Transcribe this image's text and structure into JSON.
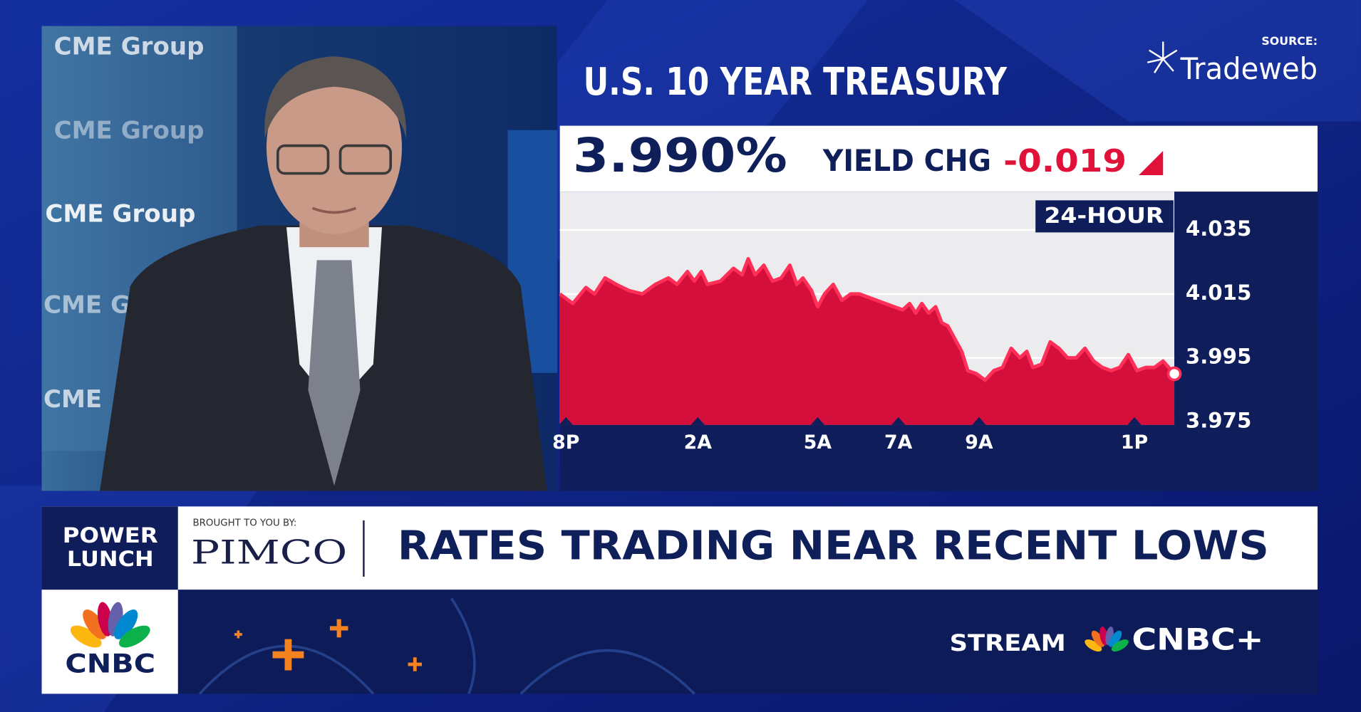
{
  "chart_data": {
    "type": "area",
    "title": "U.S. 10 YEAR TREASURY",
    "source_label": "SOURCE:",
    "source": "Tradeweb",
    "current_yield": "3.990%",
    "change_label": "YIELD CHG",
    "change": "-0.019",
    "range_label": "24-HOUR",
    "x": [
      0,
      1.5,
      3,
      4,
      5.2,
      6.5,
      8,
      9.5,
      11,
      12.5,
      13.5,
      14.7,
      15.5,
      16.3,
      17,
      18.5,
      20,
      21,
      21.7,
      22.5,
      23.5,
      24.5,
      25.5,
      26.5,
      27.3,
      28,
      29,
      29.7,
      30.5,
      31.5,
      32.5,
      33.5,
      34.5,
      35.5,
      36.5,
      37.5,
      38.5,
      39.5,
      40.3,
      41,
      41.7,
      42.5,
      43.3,
      44,
      44.7,
      45.5,
      46.3,
      47,
      48,
      49,
      50,
      51,
      52,
      53,
      53.8,
      54.5,
      55.5,
      56.5,
      57.5,
      58.5,
      59.5,
      60.5,
      61.5,
      62.5,
      63.5,
      64.5,
      65.5,
      66.5,
      67.5,
      68.5,
      69.5,
      70.8
    ],
    "values": [
      4.015,
      4.012,
      4.017,
      4.015,
      4.02,
      4.018,
      4.016,
      4.015,
      4.018,
      4.02,
      4.018,
      4.022,
      4.019,
      4.022,
      4.018,
      4.019,
      4.023,
      4.021,
      4.026,
      4.021,
      4.024,
      4.019,
      4.02,
      4.024,
      4.018,
      4.02,
      4.016,
      4.011,
      4.015,
      4.018,
      4.013,
      4.015,
      4.015,
      4.014,
      4.013,
      4.012,
      4.011,
      4.01,
      4.012,
      4.009,
      4.012,
      4.009,
      4.011,
      4.006,
      4.005,
      4.001,
      3.997,
      3.991,
      3.99,
      3.988,
      3.991,
      3.992,
      3.998,
      3.995,
      3.997,
      3.992,
      3.993,
      4.0,
      3.998,
      3.995,
      3.995,
      3.998,
      3.994,
      3.992,
      3.991,
      3.992,
      3.996,
      3.991,
      3.992,
      3.992,
      3.994,
      3.99
    ],
    "color": "#d40f3c",
    "xlim": [
      0,
      70.8
    ],
    "xticks": [
      {
        "value": 0.7,
        "label": "8P"
      },
      {
        "value": 15.9,
        "label": "2A"
      },
      {
        "value": 29.7,
        "label": "5A"
      },
      {
        "value": 39,
        "label": "7A"
      },
      {
        "value": 48.3,
        "label": "9A"
      },
      {
        "value": 66.2,
        "label": "1P"
      }
    ],
    "ylim": [
      3.974,
      4.047
    ],
    "yticks": [
      4.035,
      4.015,
      3.995,
      3.975
    ],
    "grid": true
  },
  "video": {
    "backdrop_texts": [
      "CME Group",
      "CME Group",
      "CME Group",
      "CME G",
      "CME"
    ]
  },
  "banner": {
    "show": [
      "POWER",
      "LUNCH"
    ],
    "sponsor_intro": "BROUGHT TO YOU BY:",
    "sponsor": "PIMCO",
    "headline": "RATES TRADING NEAR RECENT LOWS"
  },
  "footer": {
    "network": "CNBC",
    "stream_label": "STREAM",
    "stream_brand": "CNBC+"
  }
}
